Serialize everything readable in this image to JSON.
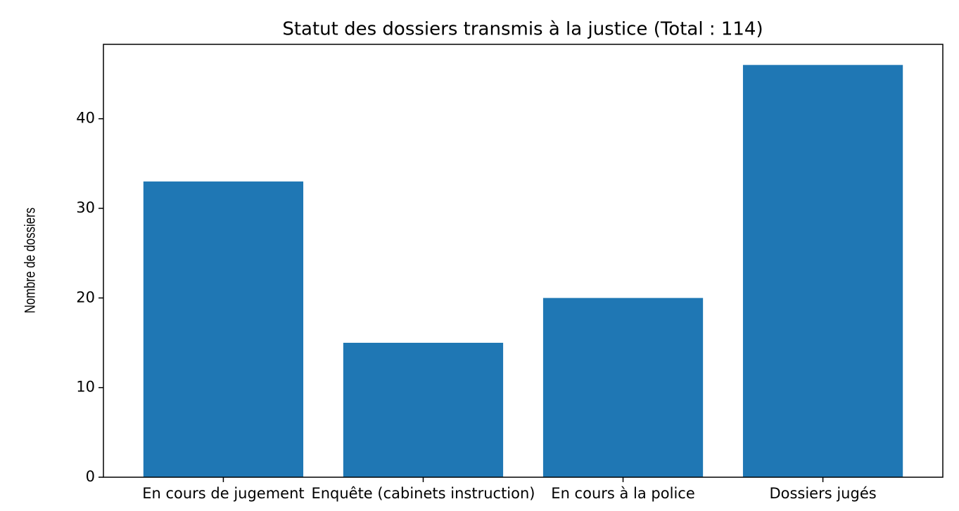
{
  "chart_data": {
    "type": "bar",
    "title": "Statut des dossiers transmis à la justice (Total : 114)",
    "y_label": "Nombre de dossiers",
    "categories": [
      "En cours de jugement",
      "Enquête (cabinets instruction)",
      "En cours à la police",
      "Dossiers jugés"
    ],
    "values": [
      33,
      15,
      20,
      46
    ],
    "color": "#1f77b4",
    "ylim": [
      0,
      48.3
    ],
    "yticks": [
      0,
      10,
      20,
      30,
      40
    ],
    "grid": false
  }
}
